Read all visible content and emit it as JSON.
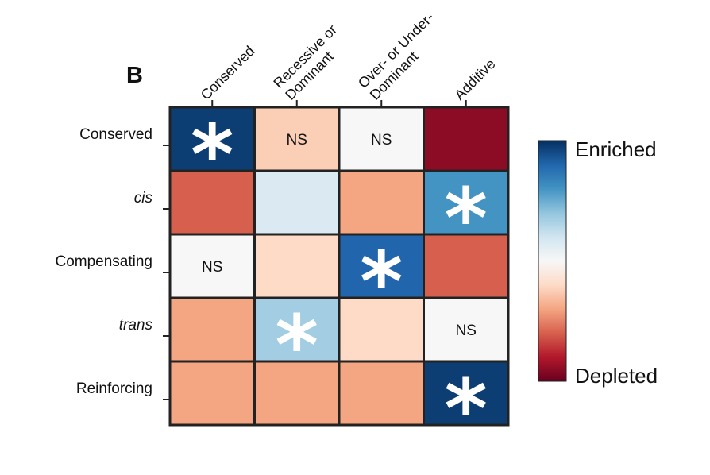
{
  "panel_label": "B",
  "chart_data": {
    "type": "heatmap",
    "columns": [
      "Conserved",
      "Recessive or Dominant",
      "Over- or Under-Dominant",
      "Additive"
    ],
    "column_lines": [
      [
        "Conserved"
      ],
      [
        "Recessive or",
        "Dominant"
      ],
      [
        "Over- or Under-",
        "Dominant"
      ],
      [
        "Additive"
      ]
    ],
    "rows": [
      "Conserved",
      "cis",
      "Compensating",
      "trans",
      "Reinforcing"
    ],
    "italic_rows": [
      "cis",
      "trans"
    ],
    "scale_range": [
      -1,
      1
    ],
    "values": [
      [
        0.95,
        -0.25,
        0.0,
        -0.9
      ],
      [
        -0.6,
        0.15,
        -0.4,
        0.6
      ],
      [
        0.0,
        -0.2,
        0.8,
        -0.6
      ],
      [
        -0.4,
        0.35,
        -0.2,
        0.0
      ],
      [
        -0.4,
        -0.4,
        -0.4,
        0.95
      ]
    ],
    "annotations": [
      [
        "*",
        "NS",
        "NS",
        ""
      ],
      [
        "",
        "",
        "",
        "*"
      ],
      [
        "NS",
        "",
        "*",
        ""
      ],
      [
        "",
        "*",
        "",
        "NS"
      ],
      [
        "",
        "",
        "",
        "*"
      ]
    ],
    "colormap": [
      "#67001f",
      "#b2182b",
      "#d6604d",
      "#f4a582",
      "#fddbc7",
      "#f7f7f7",
      "#d1e5f0",
      "#92c5de",
      "#4393c3",
      "#2166ac",
      "#053061"
    ],
    "legend": {
      "top": "Enriched",
      "bottom": "Depleted",
      "placement": "right"
    }
  }
}
